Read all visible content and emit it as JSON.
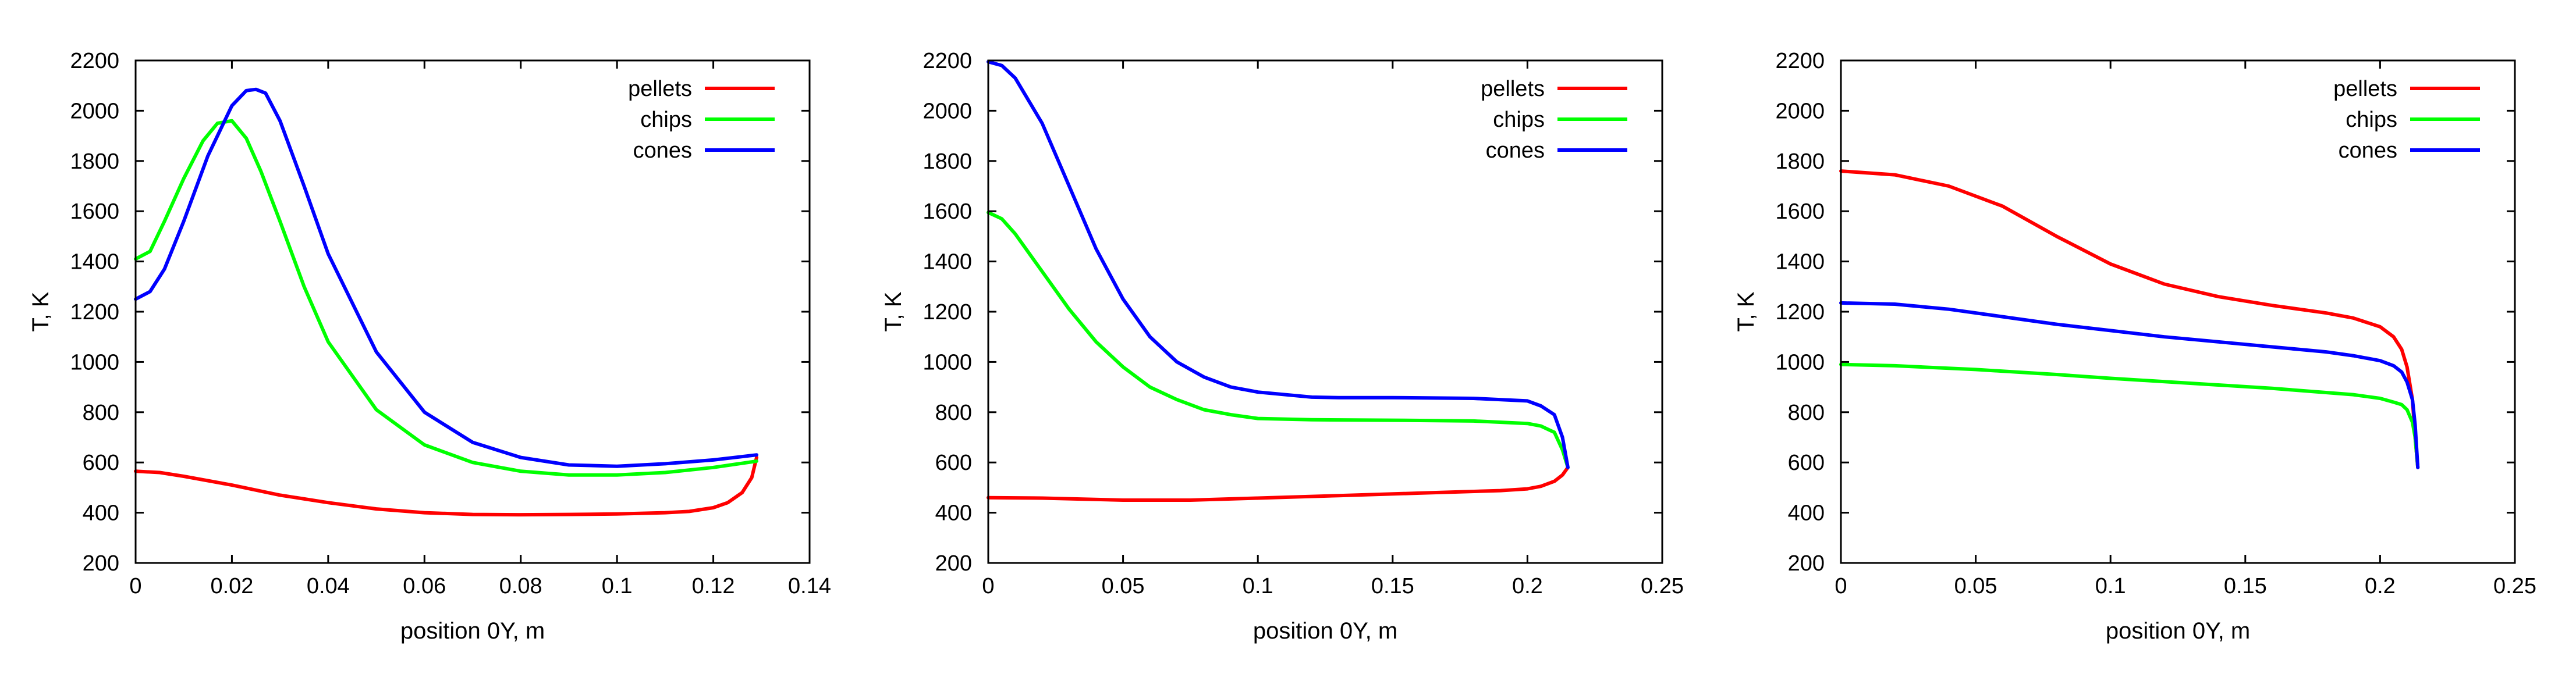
{
  "chart_data": [
    {
      "type": "line",
      "title": "",
      "xlabel": "position 0Y, m",
      "ylabel": "T, K",
      "xlim": [
        0,
        0.14
      ],
      "ylim": [
        200,
        2200
      ],
      "xticks": [
        0,
        0.02,
        0.04,
        0.06,
        0.08,
        0.1,
        0.12,
        0.14
      ],
      "xtick_labels": [
        "0",
        "0.02",
        "0.04",
        "0.06",
        "0.08",
        "0.1",
        "0.12",
        "0.14"
      ],
      "yticks": [
        200,
        400,
        600,
        800,
        1000,
        1200,
        1400,
        1600,
        1800,
        2000,
        2200
      ],
      "ytick_labels": [
        "200",
        "400",
        "600",
        "800",
        "1000",
        "1200",
        "1400",
        "1600",
        "1800",
        "2000",
        "2200"
      ],
      "grid": false,
      "legend_position": "top-right",
      "series": [
        {
          "name": "pellets",
          "color": "#ff0000",
          "x": [
            0,
            0.005,
            0.01,
            0.02,
            0.03,
            0.04,
            0.05,
            0.06,
            0.07,
            0.08,
            0.09,
            0.1,
            0.11,
            0.115,
            0.12,
            0.123,
            0.126,
            0.128,
            0.129
          ],
          "y": [
            565,
            560,
            545,
            510,
            470,
            440,
            415,
            400,
            393,
            392,
            393,
            395,
            400,
            405,
            420,
            440,
            480,
            540,
            620
          ]
        },
        {
          "name": "chips",
          "color": "#00ff00",
          "x": [
            0,
            0.003,
            0.006,
            0.01,
            0.014,
            0.017,
            0.02,
            0.023,
            0.026,
            0.03,
            0.035,
            0.04,
            0.05,
            0.06,
            0.07,
            0.08,
            0.09,
            0.1,
            0.11,
            0.12,
            0.129
          ],
          "y": [
            1410,
            1440,
            1560,
            1730,
            1880,
            1950,
            1960,
            1890,
            1760,
            1560,
            1300,
            1080,
            810,
            670,
            600,
            565,
            550,
            550,
            560,
            580,
            605
          ]
        },
        {
          "name": "cones",
          "color": "#0000ff",
          "x": [
            0,
            0.003,
            0.006,
            0.01,
            0.015,
            0.02,
            0.023,
            0.025,
            0.027,
            0.03,
            0.035,
            0.04,
            0.05,
            0.06,
            0.07,
            0.08,
            0.09,
            0.1,
            0.11,
            0.12,
            0.129
          ],
          "y": [
            1250,
            1280,
            1370,
            1560,
            1820,
            2020,
            2080,
            2085,
            2070,
            1960,
            1700,
            1430,
            1040,
            800,
            680,
            620,
            590,
            585,
            595,
            610,
            630
          ]
        }
      ]
    },
    {
      "type": "line",
      "title": "",
      "xlabel": "position 0Y, m",
      "ylabel": "T, K",
      "xlim": [
        0,
        0.25
      ],
      "ylim": [
        200,
        2200
      ],
      "xticks": [
        0,
        0.05,
        0.1,
        0.15,
        0.2,
        0.25
      ],
      "xtick_labels": [
        "0",
        "0.05",
        "0.1",
        "0.15",
        "0.2",
        "0.25"
      ],
      "yticks": [
        200,
        400,
        600,
        800,
        1000,
        1200,
        1400,
        1600,
        1800,
        2000,
        2200
      ],
      "ytick_labels": [
        "200",
        "400",
        "600",
        "800",
        "1000",
        "1200",
        "1400",
        "1600",
        "1800",
        "2000",
        "2200"
      ],
      "grid": false,
      "legend_position": "top-right",
      "series": [
        {
          "name": "pellets",
          "color": "#ff0000",
          "x": [
            0,
            0.02,
            0.05,
            0.075,
            0.1,
            0.13,
            0.16,
            0.19,
            0.2,
            0.205,
            0.21,
            0.213,
            0.215
          ],
          "y": [
            460,
            458,
            450,
            450,
            458,
            468,
            478,
            488,
            495,
            505,
            525,
            550,
            580
          ]
        },
        {
          "name": "chips",
          "color": "#00ff00",
          "x": [
            0,
            0.005,
            0.01,
            0.02,
            0.03,
            0.04,
            0.05,
            0.06,
            0.07,
            0.08,
            0.09,
            0.1,
            0.12,
            0.15,
            0.18,
            0.2,
            0.205,
            0.21,
            0.213,
            0.215
          ],
          "y": [
            1595,
            1570,
            1510,
            1360,
            1210,
            1080,
            980,
            900,
            850,
            810,
            790,
            775,
            770,
            768,
            765,
            755,
            745,
            720,
            650,
            580
          ]
        },
        {
          "name": "cones",
          "color": "#0000ff",
          "x": [
            0,
            0.005,
            0.01,
            0.02,
            0.03,
            0.04,
            0.05,
            0.06,
            0.07,
            0.08,
            0.09,
            0.1,
            0.12,
            0.13,
            0.15,
            0.18,
            0.2,
            0.205,
            0.21,
            0.213,
            0.215
          ],
          "y": [
            2195,
            2180,
            2130,
            1950,
            1700,
            1450,
            1250,
            1100,
            1000,
            940,
            900,
            880,
            860,
            858,
            858,
            855,
            845,
            825,
            790,
            700,
            580
          ]
        }
      ]
    },
    {
      "type": "line",
      "title": "",
      "xlabel": "position 0Y, m",
      "ylabel": "T, K",
      "xlim": [
        0,
        0.25
      ],
      "ylim": [
        200,
        2200
      ],
      "xticks": [
        0,
        0.05,
        0.1,
        0.15,
        0.2,
        0.25
      ],
      "xtick_labels": [
        "0",
        "0.05",
        "0.1",
        "0.15",
        "0.2",
        "0.25"
      ],
      "yticks": [
        200,
        400,
        600,
        800,
        1000,
        1200,
        1400,
        1600,
        1800,
        2000,
        2200
      ],
      "ytick_labels": [
        "200",
        "400",
        "600",
        "800",
        "1000",
        "1200",
        "1400",
        "1600",
        "1800",
        "2000",
        "2200"
      ],
      "grid": false,
      "legend_position": "top-right",
      "series": [
        {
          "name": "pellets",
          "color": "#ff0000",
          "x": [
            0,
            0.02,
            0.04,
            0.06,
            0.08,
            0.1,
            0.12,
            0.14,
            0.16,
            0.18,
            0.19,
            0.2,
            0.205,
            0.208,
            0.21,
            0.212,
            0.213,
            0.214
          ],
          "y": [
            1760,
            1745,
            1700,
            1620,
            1500,
            1390,
            1310,
            1260,
            1225,
            1195,
            1175,
            1140,
            1100,
            1050,
            980,
            850,
            700,
            580
          ]
        },
        {
          "name": "chips",
          "color": "#00ff00",
          "x": [
            0,
            0.02,
            0.05,
            0.08,
            0.1,
            0.13,
            0.16,
            0.19,
            0.2,
            0.205,
            0.208,
            0.21,
            0.212,
            0.213,
            0.214
          ],
          "y": [
            990,
            985,
            970,
            950,
            935,
            915,
            895,
            870,
            855,
            840,
            830,
            810,
            760,
            700,
            580
          ]
        },
        {
          "name": "cones",
          "color": "#0000ff",
          "x": [
            0,
            0.02,
            0.04,
            0.06,
            0.08,
            0.1,
            0.12,
            0.14,
            0.16,
            0.18,
            0.19,
            0.2,
            0.205,
            0.208,
            0.21,
            0.212,
            0.213,
            0.214
          ],
          "y": [
            1235,
            1230,
            1210,
            1180,
            1150,
            1125,
            1100,
            1080,
            1060,
            1040,
            1025,
            1005,
            985,
            960,
            920,
            850,
            750,
            580
          ]
        }
      ]
    }
  ]
}
